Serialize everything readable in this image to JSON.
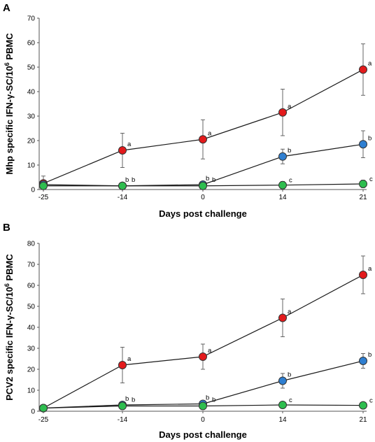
{
  "chart_data": [
    {
      "panel_label": "A",
      "type": "line",
      "xlabel": "Days post challenge",
      "ylabel_parts": [
        "Mhp specific IFN-γ-SC/10",
        "6",
        " PBMC"
      ],
      "categories": [
        "-25",
        "-14",
        "0",
        "14",
        "21"
      ],
      "ylim": [
        0,
        70
      ],
      "yticks": [
        0,
        10,
        20,
        30,
        40,
        50,
        60,
        70
      ],
      "grid": false,
      "series": [
        {
          "color": "#e31a1c",
          "values": [
            2.5,
            16,
            20.5,
            31.5,
            49
          ],
          "errors": [
            3,
            7,
            8,
            9.5,
            10.5
          ],
          "labels": [
            "",
            "a",
            "a",
            "a",
            "a"
          ]
        },
        {
          "color": "#2f7fd1",
          "values": [
            2,
            1.5,
            2,
            13.5,
            18.5
          ],
          "errors": [
            1,
            0.8,
            0.8,
            3,
            5.5
          ],
          "labels": [
            "",
            "b",
            "b",
            "b",
            "b"
          ]
        },
        {
          "color": "#2ebd4f",
          "values": [
            1.5,
            1.5,
            1.5,
            1.8,
            2.3
          ],
          "errors": [
            1,
            0.8,
            0.8,
            1.5,
            1.5
          ],
          "labels": [
            "",
            "b",
            "b",
            "c",
            "c"
          ]
        }
      ]
    },
    {
      "panel_label": "B",
      "type": "line",
      "xlabel": "Days post challenge",
      "ylabel_parts": [
        "PCV2 specific IFN-γ-SC/10",
        "6",
        " PBMC"
      ],
      "categories": [
        "-25",
        "-14",
        "0",
        "14",
        "21"
      ],
      "ylim": [
        0,
        80
      ],
      "yticks": [
        0,
        10,
        20,
        30,
        40,
        50,
        60,
        70,
        80
      ],
      "grid": false,
      "series": [
        {
          "color": "#e31a1c",
          "values": [
            1.5,
            22,
            26,
            44.5,
            65
          ],
          "errors": [
            1,
            8.5,
            6,
            9,
            9
          ],
          "labels": [
            "",
            "a",
            "a",
            "a",
            "a"
          ]
        },
        {
          "color": "#2f7fd1",
          "values": [
            1.5,
            3,
            3.5,
            14.5,
            24
          ],
          "errors": [
            1,
            1.5,
            1.5,
            3.5,
            3.5
          ],
          "labels": [
            "",
            "b",
            "b",
            "b",
            "b"
          ]
        },
        {
          "color": "#2ebd4f",
          "values": [
            1.5,
            2.5,
            2.5,
            3,
            2.8
          ],
          "errors": [
            1,
            1.5,
            1.5,
            1.5,
            1.5
          ],
          "labels": [
            "",
            "b",
            "b",
            "c",
            "c"
          ]
        }
      ]
    }
  ]
}
